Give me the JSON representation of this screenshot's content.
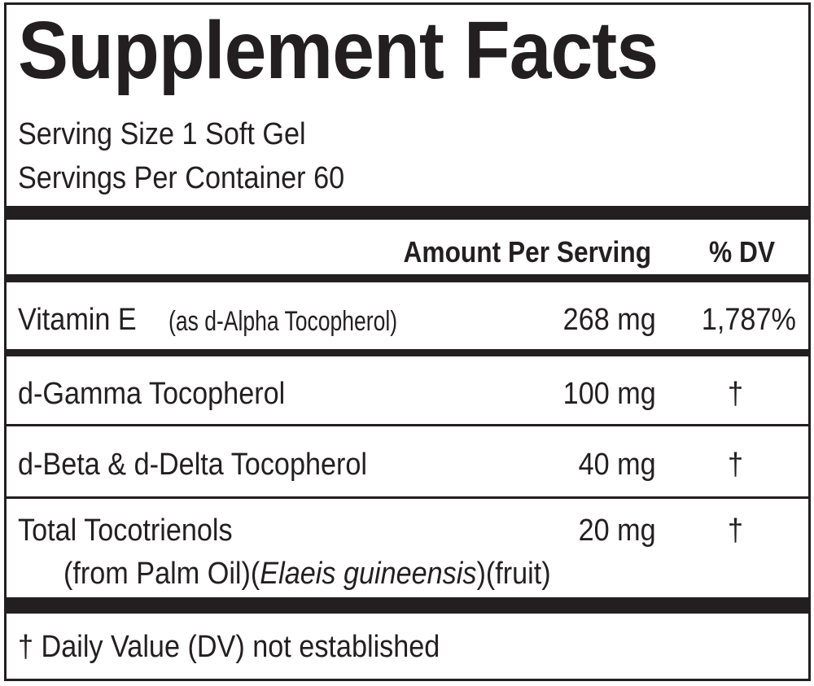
{
  "title": "Supplement Facts",
  "serving_size": "Serving Size 1 Soft Gel",
  "servings_per_container": "Servings Per Container 60",
  "header": {
    "amount": "Amount Per Serving",
    "dv": "% DV"
  },
  "rows": [
    {
      "name": "Vitamin E",
      "detail": "(as d-Alpha Tocopherol)",
      "amount": "268 mg",
      "dv": "1,787%"
    },
    {
      "name": "d-Gamma Tocopherol",
      "amount": "100 mg",
      "dv": "†"
    },
    {
      "name": "d-Beta & d-Delta Tocopherol",
      "amount": "40 mg",
      "dv": "†"
    },
    {
      "name": "Total Tocotrienols",
      "source_a": "(from Palm Oil)(",
      "source_italic": "Elaeis guineensis",
      "source_b": ")(fruit)",
      "amount": "20 mg",
      "dv": "†"
    }
  ],
  "footnote": "† Daily Value (DV) not established",
  "colors": {
    "ink": "#231f20",
    "background": "#ffffff"
  }
}
